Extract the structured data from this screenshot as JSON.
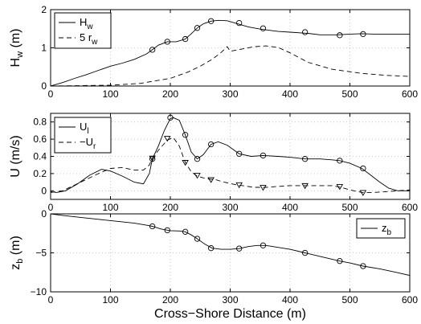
{
  "chart_data": [
    {
      "type": "line",
      "title": "",
      "xlabel": "",
      "ylabel": "H",
      "ylabel_sub": "w",
      "ylabel_unit": " (m)",
      "xlim": [
        0,
        600
      ],
      "ylim": [
        0,
        2
      ],
      "xticks": [
        0,
        100,
        200,
        300,
        400,
        500,
        600
      ],
      "yticks": [
        0,
        1,
        2
      ],
      "grid": true,
      "legend": "top-left",
      "series": [
        {
          "name": "H",
          "name_sub": "w",
          "style": "solid",
          "x": [
            0,
            20,
            40,
            60,
            80,
            100,
            120,
            140,
            160,
            170,
            180,
            195,
            210,
            225,
            235,
            245,
            255,
            268,
            280,
            295,
            310,
            330,
            350,
            380,
            400,
            430,
            450,
            480,
            500,
            520,
            540,
            570,
            600
          ],
          "y": [
            0.0,
            0.09,
            0.2,
            0.3,
            0.41,
            0.52,
            0.6,
            0.7,
            0.84,
            0.95,
            1.07,
            1.16,
            1.16,
            1.23,
            1.37,
            1.52,
            1.63,
            1.7,
            1.72,
            1.71,
            1.64,
            1.55,
            1.49,
            1.43,
            1.41,
            1.38,
            1.34,
            1.34,
            1.36,
            1.37,
            1.36,
            1.36,
            1.36
          ]
        },
        {
          "name": "5 r",
          "name_sub": "w",
          "style": "dashed",
          "x": [
            0,
            100,
            150,
            200,
            230,
            250,
            270,
            285,
            295,
            300,
            320,
            340,
            360,
            380,
            400,
            430,
            470,
            520,
            560,
            600
          ],
          "y": [
            0.0,
            0.02,
            0.07,
            0.2,
            0.37,
            0.52,
            0.7,
            0.88,
            1.03,
            0.91,
            0.97,
            1.03,
            1.05,
            1.01,
            0.87,
            0.62,
            0.44,
            0.33,
            0.28,
            0.25
          ]
        }
      ],
      "markers": {
        "symbol": "circle",
        "x": [
          170,
          195,
          225,
          245,
          268,
          315,
          355,
          425,
          483,
          522
        ],
        "y": [
          0.95,
          1.16,
          1.23,
          1.52,
          1.7,
          1.65,
          1.51,
          1.41,
          1.33,
          1.36
        ]
      }
    },
    {
      "type": "line",
      "title": "",
      "xlabel": "",
      "ylabel": "U (m/s)",
      "xlim": [
        0,
        600
      ],
      "ylim": [
        -0.1,
        0.9
      ],
      "xticks": [
        0,
        100,
        200,
        300,
        400,
        500,
        600
      ],
      "yticks": [
        0,
        0.2,
        0.4,
        0.6,
        0.8
      ],
      "ytick_labels": [
        "0",
        "0.2",
        "0.4",
        "0.6",
        "0.8"
      ],
      "grid": true,
      "legend": "top-left",
      "series": [
        {
          "name": "U",
          "name_sub": "l",
          "style": "solid",
          "x": [
            0,
            10,
            25,
            45,
            65,
            85,
            100,
            120,
            140,
            155,
            165,
            170,
            180,
            190,
            200,
            205,
            215,
            225,
            235,
            245,
            255,
            268,
            280,
            295,
            315,
            335,
            355,
            380,
            400,
            425,
            450,
            470,
            483,
            500,
            520,
            535,
            550,
            565,
            580,
            600
          ],
          "y": [
            -0.01,
            -0.02,
            0.0,
            0.08,
            0.18,
            0.25,
            0.23,
            0.17,
            0.1,
            0.08,
            0.2,
            0.37,
            0.52,
            0.7,
            0.84,
            0.85,
            0.82,
            0.65,
            0.45,
            0.37,
            0.42,
            0.54,
            0.57,
            0.53,
            0.43,
            0.4,
            0.41,
            0.4,
            0.39,
            0.37,
            0.37,
            0.36,
            0.35,
            0.32,
            0.26,
            0.18,
            0.1,
            0.03,
            0.0,
            0.0
          ]
        },
        {
          "name": "−U",
          "name_sub": "r",
          "style": "dashed",
          "x": [
            0,
            20,
            50,
            80,
            100,
            120,
            140,
            155,
            165,
            170,
            180,
            195,
            205,
            215,
            225,
            235,
            245,
            260,
            275,
            290,
            310,
            340,
            360,
            380,
            400,
            425,
            450,
            470,
            485,
            500,
            520,
            540,
            560,
            580,
            600
          ],
          "y": [
            -0.02,
            0.0,
            0.1,
            0.2,
            0.26,
            0.27,
            0.24,
            0.24,
            0.3,
            0.38,
            0.47,
            0.59,
            0.62,
            0.52,
            0.33,
            0.22,
            0.17,
            0.14,
            0.13,
            0.1,
            0.07,
            0.04,
            0.04,
            0.05,
            0.06,
            0.06,
            0.06,
            0.06,
            0.04,
            0.01,
            -0.02,
            -0.02,
            -0.01,
            0.0,
            0.01
          ]
        }
      ],
      "markers": [
        {
          "symbol": "circle",
          "x": [
            170,
            200,
            225,
            245,
            268,
            315,
            355,
            425,
            483,
            522
          ],
          "y": [
            0.37,
            0.85,
            0.65,
            0.37,
            0.54,
            0.43,
            0.41,
            0.37,
            0.35,
            0.26
          ]
        },
        {
          "symbol": "triangle-down",
          "x": [
            170,
            195,
            225,
            245,
            268,
            315,
            355,
            425,
            483,
            522
          ],
          "y": [
            0.38,
            0.61,
            0.33,
            0.18,
            0.13,
            0.07,
            0.04,
            0.06,
            0.05,
            -0.02
          ]
        }
      ]
    },
    {
      "type": "line",
      "title": "",
      "xlabel": "Cross−Shore Distance (m)",
      "ylabel": "z",
      "ylabel_sub": "b",
      "ylabel_unit": " (m)",
      "xlim": [
        0,
        600
      ],
      "ylim": [
        -10,
        0
      ],
      "xticks": [
        0,
        100,
        200,
        300,
        400,
        500,
        600
      ],
      "yticks": [
        -10,
        -5,
        0
      ],
      "ytick_labels": [
        "−10",
        "−5",
        "0"
      ],
      "grid": true,
      "legend": "top-right",
      "series": [
        {
          "name": "z",
          "name_sub": "b",
          "style": "solid",
          "x": [
            0,
            20,
            50,
            80,
            110,
            140,
            160,
            170,
            185,
            200,
            215,
            225,
            235,
            245,
            258,
            270,
            285,
            300,
            315,
            330,
            345,
            360,
            380,
            400,
            425,
            450,
            483,
            500,
            522,
            550,
            580,
            600
          ],
          "y": [
            0.0,
            -0.2,
            -0.45,
            -0.7,
            -0.95,
            -1.2,
            -1.45,
            -1.6,
            -1.95,
            -2.15,
            -2.2,
            -2.3,
            -2.7,
            -3.2,
            -3.9,
            -4.4,
            -4.55,
            -4.55,
            -4.45,
            -4.2,
            -4.05,
            -4.05,
            -4.3,
            -4.55,
            -5.0,
            -5.45,
            -6.05,
            -6.3,
            -6.7,
            -7.05,
            -7.55,
            -7.9
          ]
        }
      ],
      "markers": {
        "symbol": "circle",
        "x": [
          170,
          195,
          225,
          245,
          268,
          315,
          355,
          425,
          483,
          522
        ],
        "y": [
          -1.6,
          -2.1,
          -2.3,
          -3.2,
          -4.4,
          -4.45,
          -4.05,
          -5.0,
          -6.05,
          -6.7
        ]
      }
    }
  ]
}
